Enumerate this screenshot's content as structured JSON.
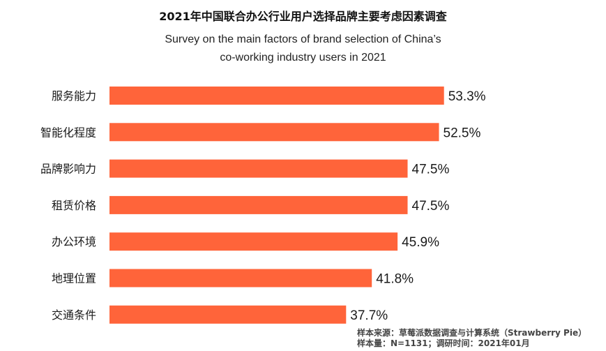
{
  "colors": {
    "bar": "#ff643a",
    "text": "#1a1a1a"
  },
  "chart_data": {
    "type": "bar",
    "orientation": "horizontal",
    "title": "2021年中国联合办公行业用户选择品牌主要考虑因素调查",
    "subtitle_line1": "Survey on the main factors of brand selection of China’s",
    "subtitle_line2": "co-working industry users in 2021",
    "categories": [
      "服务能力",
      "智能化程度",
      "品牌影响力",
      "租赁价格",
      "办公环境",
      "地理位置",
      "交通条件"
    ],
    "values": [
      53.3,
      52.5,
      47.5,
      47.5,
      45.9,
      41.8,
      37.7
    ],
    "value_labels": [
      "53.3%",
      "52.5%",
      "47.5%",
      "47.5%",
      "45.9%",
      "41.8%",
      "37.7%"
    ],
    "xlim": [
      0,
      60
    ],
    "grid": false,
    "legend": "none"
  },
  "source": {
    "line1": "样本来源：草莓派数据调查与计算系统（Strawberry Pie）",
    "line2": "样本量：N=1131；调研时间：2021年01月"
  }
}
